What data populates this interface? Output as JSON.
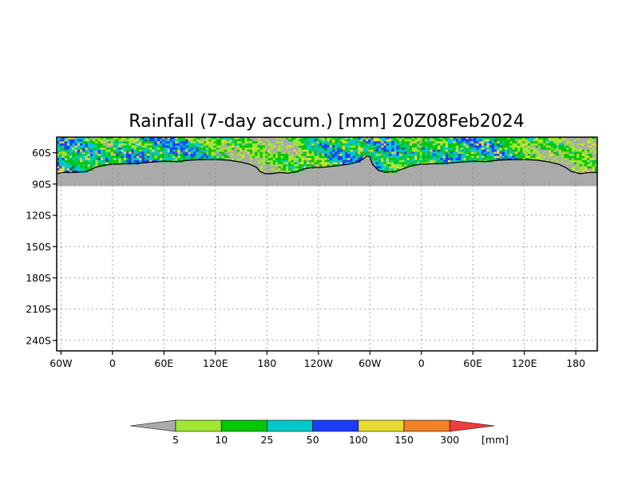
{
  "title": "Rainfall (7-day accum.) [mm] 20Z08Feb2024",
  "map": {
    "lat_labels": [
      "60S",
      "90S",
      "120S",
      "150S",
      "180S",
      "210S",
      "240S"
    ],
    "lat_values": [
      -60,
      -90,
      -120,
      -150,
      -180,
      -210,
      -240
    ],
    "lon_labels": [
      "60W",
      "0",
      "60E",
      "120E",
      "180",
      "120W",
      "60W",
      "0",
      "60E",
      "120E",
      "180"
    ],
    "lon_values": [
      -60,
      0,
      60,
      120,
      180,
      240,
      300,
      360,
      420,
      480,
      540
    ],
    "lon_range": [
      -65,
      565
    ],
    "lat_range": [
      -45,
      -250
    ],
    "data_lat_range": [
      -45,
      -92
    ],
    "grid": true,
    "land_color": "#aaaaaa"
  },
  "legend": {
    "labels": [
      "5",
      "10",
      "25",
      "50",
      "100",
      "150",
      "300"
    ],
    "unit": "[mm]",
    "colors": [
      "#aaaaaa",
      "#a0e632",
      "#00c800",
      "#00c8c8",
      "#1e3cff",
      "#e6dc32",
      "#f08228",
      "#f03c3c"
    ]
  }
}
